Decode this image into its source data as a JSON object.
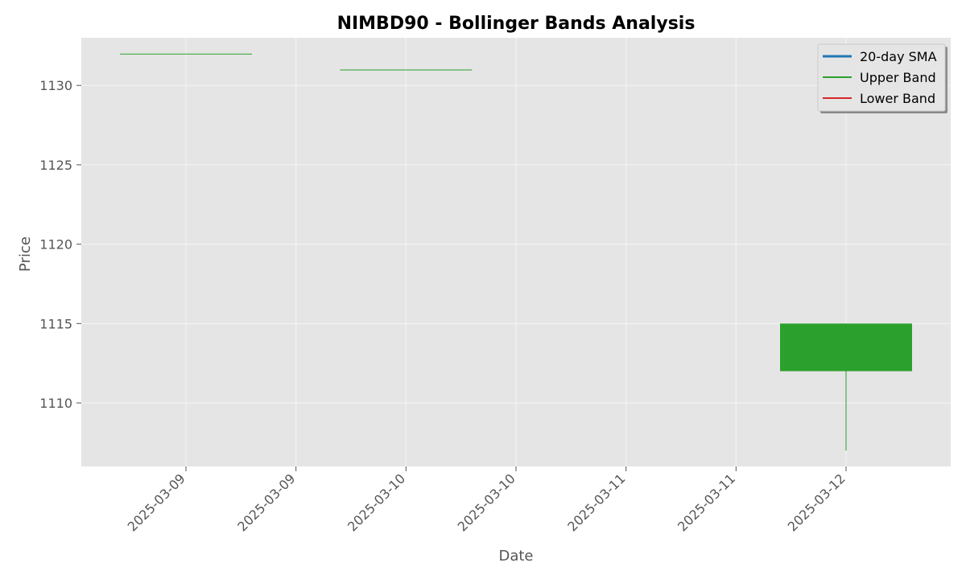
{
  "chart_data": {
    "type": "candlestick",
    "title": "NIMBD90 - Bollinger Bands Analysis",
    "xlabel": "Date",
    "ylabel": "Price",
    "ylim": [
      1106,
      1133
    ],
    "y_ticks": [
      1110,
      1115,
      1120,
      1125,
      1130
    ],
    "x_tick_labels": [
      "2025-03-09",
      "2025-03-09",
      "2025-03-10",
      "2025-03-10",
      "2025-03-11",
      "2025-03-11",
      "2025-03-12"
    ],
    "grid": true,
    "legend_position": "top-right",
    "legend": [
      {
        "label": "20-day SMA",
        "color": "#1f77b4"
      },
      {
        "label": "Upper Band",
        "color": "#2ca02c"
      },
      {
        "label": "Lower Band",
        "color": "#d62728"
      }
    ],
    "candles": [
      {
        "date": "2025-03-09",
        "open": 1132,
        "high": 1132,
        "low": 1132,
        "close": 1132,
        "color": "#2ca02c"
      },
      {
        "date": "2025-03-10",
        "open": 1131,
        "high": 1131,
        "low": 1131,
        "close": 1131,
        "color": "#2ca02c"
      },
      {
        "date": "2025-03-12",
        "open": 1112,
        "high": 1115,
        "low": 1107,
        "close": 1115,
        "color": "#2ca02c"
      }
    ]
  }
}
